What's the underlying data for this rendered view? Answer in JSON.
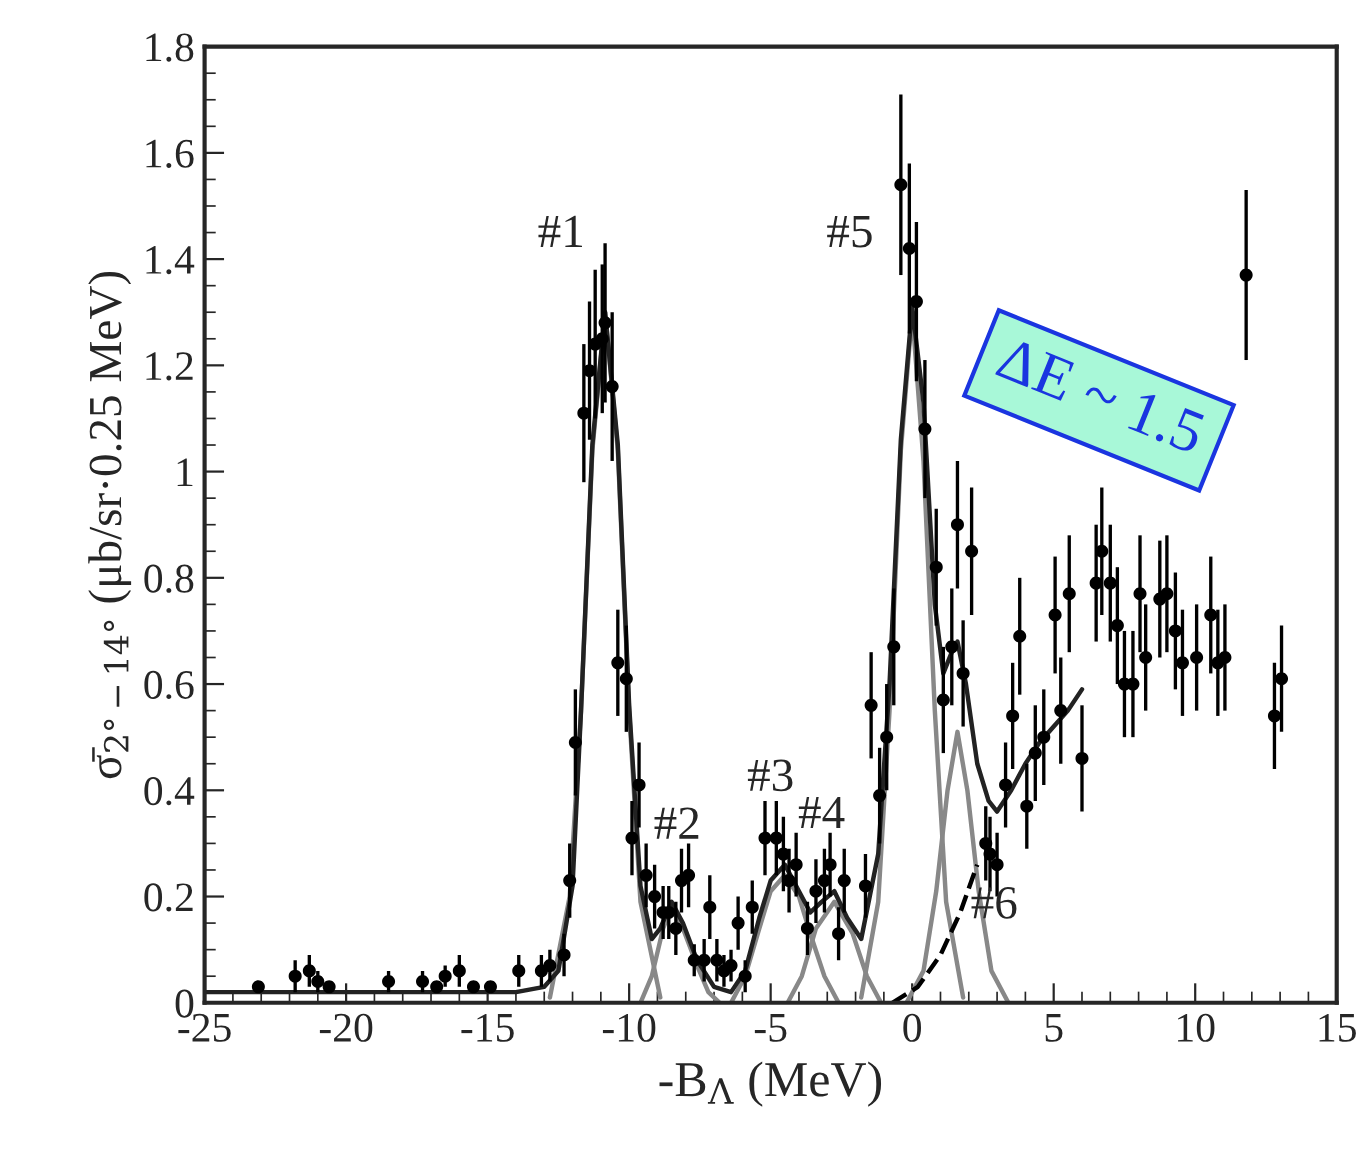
{
  "chart_data": {
    "type": "scatter",
    "xlabel": "-B$_{Λ}$ (MeV)",
    "ylabel": "σ̄$_{2°−14°}$ (μb/sr·0.25 MeV)",
    "xlim": [
      -25,
      15
    ],
    "xticks": [
      -25,
      -20,
      -15,
      -10,
      -5,
      0,
      5,
      10,
      15
    ],
    "ylim": [
      0,
      1.8
    ],
    "yticks": [
      0,
      0.2,
      0.4,
      0.6,
      0.8,
      1,
      1.2,
      1.4,
      1.6,
      1.8
    ],
    "grid": false,
    "legend": false,
    "series": [
      {
        "type": "line",
        "color": "#888888",
        "line_style": "solid",
        "x": [
          -12.8,
          -12.1,
          -11.7,
          -11.3,
          -10.85,
          -10.4,
          -10.0,
          -9.6,
          -8.9
        ],
        "values": [
          0.01,
          0.2,
          0.55,
          1.04,
          1.3,
          1.04,
          0.55,
          0.19,
          0.01
        ]
      },
      {
        "type": "line",
        "color": "#888888",
        "line_style": "solid",
        "x": [
          -9.6,
          -9.2,
          -8.8,
          -8.5,
          -8.1,
          -7.6,
          -7.2,
          -6.8
        ],
        "values": [
          0.0,
          0.05,
          0.14,
          0.18,
          0.14,
          0.07,
          0.02,
          0.0
        ]
      },
      {
        "type": "line",
        "color": "#888888",
        "line_style": "solid",
        "x": [
          -6.4,
          -5.9,
          -5.4,
          -5.0,
          -4.5,
          -4.0,
          -3.6,
          -3.1,
          -2.6
        ],
        "values": [
          0.0,
          0.05,
          0.14,
          0.21,
          0.24,
          0.2,
          0.13,
          0.05,
          0.0
        ]
      },
      {
        "type": "line",
        "color": "#888888",
        "line_style": "solid",
        "x": [
          -4.4,
          -3.9,
          -3.4,
          -2.75,
          -2.1,
          -1.6,
          -1.1
        ],
        "values": [
          0.0,
          0.05,
          0.14,
          0.19,
          0.13,
          0.05,
          0.0
        ]
      },
      {
        "type": "line",
        "color": "#888888",
        "line_style": "solid",
        "x": [
          -1.8,
          -1.2,
          -0.8,
          -0.4,
          0,
          0.4,
          0.8,
          1.2,
          1.8
        ],
        "values": [
          0.01,
          0.19,
          0.55,
          1.04,
          1.3,
          1.02,
          0.55,
          0.19,
          0.01
        ]
      },
      {
        "type": "line",
        "color": "#888888",
        "line_style": "solid",
        "x": [
          -0.2,
          0.4,
          0.85,
          1.25,
          1.6,
          1.95,
          2.35,
          2.8,
          3.4
        ],
        "values": [
          0.0,
          0.06,
          0.21,
          0.4,
          0.51,
          0.4,
          0.21,
          0.06,
          0.0
        ]
      },
      {
        "type": "line",
        "color": "#000000",
        "line_style": "dashed",
        "x": [
          -0.7,
          0.2,
          1.0,
          1.7,
          2.3
        ],
        "values": [
          0.0,
          0.03,
          0.09,
          0.17,
          0.26
        ]
      },
      {
        "type": "line",
        "color": "#222222",
        "line_style": "solid",
        "x": [
          -25,
          -14,
          -13,
          -12.5,
          -12,
          -11.7,
          -11.3,
          -10.85,
          -10.4,
          -10,
          -9.6,
          -9.2,
          -8.9,
          -8.5,
          -8.1,
          -7.6,
          -7.0,
          -6.4,
          -5.9,
          -5.4,
          -5.0,
          -4.5,
          -4.0,
          -3.6,
          -3.2,
          -2.75,
          -2.3,
          -1.8,
          -1.2,
          -0.8,
          -0.4,
          0,
          0.4,
          0.8,
          1.1,
          1.4,
          1.6,
          1.9,
          2.3,
          2.7,
          3.0,
          3.5,
          4.0,
          4.5,
          5.0,
          5.5,
          6.0
        ],
        "values": [
          0.02,
          0.02,
          0.03,
          0.06,
          0.22,
          0.55,
          1.05,
          1.3,
          1.05,
          0.56,
          0.22,
          0.12,
          0.14,
          0.19,
          0.15,
          0.08,
          0.03,
          0.02,
          0.06,
          0.16,
          0.23,
          0.26,
          0.21,
          0.17,
          0.19,
          0.21,
          0.16,
          0.12,
          0.28,
          0.6,
          1.06,
          1.31,
          1.13,
          0.75,
          0.62,
          0.66,
          0.68,
          0.6,
          0.45,
          0.38,
          0.36,
          0.4,
          0.45,
          0.49,
          0.52,
          0.55,
          0.59
        ]
      },
      {
        "type": "scatter",
        "color": "#000000",
        "marker": "circle",
        "x": [
          -23.1,
          -21.8,
          -21.3,
          -21.0,
          -20.6,
          -18.5,
          -17.3,
          -16.8,
          -16.5,
          -16.0,
          -15.5,
          -14.9,
          -13.9,
          -13.1,
          -12.8,
          -12.3,
          -12.1,
          -11.9,
          -11.6,
          -11.4,
          -11.2,
          -10.95,
          -10.85,
          -10.6,
          -10.4,
          -10.1,
          -9.9,
          -9.65,
          -9.4,
          -9.1,
          -8.8,
          -8.6,
          -8.35,
          -8.15,
          -7.9,
          -7.7,
          -7.35,
          -7.15,
          -6.9,
          -6.65,
          -6.4,
          -6.15,
          -5.9,
          -5.65,
          -5.2,
          -4.8,
          -4.55,
          -4.35,
          -4.1,
          -3.7,
          -3.4,
          -3.1,
          -2.9,
          -2.6,
          -2.4,
          -1.65,
          -1.45,
          -1.15,
          -0.9,
          -0.65,
          -0.4,
          -0.1,
          0.15,
          0.45,
          0.85,
          1.1,
          1.4,
          1.6,
          1.8,
          2.1,
          2.6,
          2.75,
          3.0,
          3.3,
          3.55,
          3.8,
          4.05,
          4.35,
          4.65,
          5.05,
          5.25,
          5.55,
          6.0,
          6.5,
          6.7,
          7.0,
          7.25,
          7.5,
          7.8,
          8.05,
          8.25,
          8.75,
          9.0,
          9.3,
          9.55,
          10.05,
          10.55,
          10.8,
          11.05,
          11.8,
          12.8,
          13.05
        ],
        "values": [
          0.03,
          0.05,
          0.06,
          0.04,
          0.03,
          0.04,
          0.04,
          0.03,
          0.05,
          0.06,
          0.03,
          0.03,
          0.06,
          0.06,
          0.07,
          0.09,
          0.23,
          0.49,
          1.11,
          1.19,
          1.24,
          1.25,
          1.28,
          1.16,
          0.64,
          0.61,
          0.31,
          0.41,
          0.24,
          0.2,
          0.17,
          0.17,
          0.14,
          0.23,
          0.24,
          0.08,
          0.08,
          0.18,
          0.08,
          0.06,
          0.07,
          0.15,
          0.05,
          0.18,
          0.31,
          0.31,
          0.28,
          0.23,
          0.26,
          0.14,
          0.21,
          0.23,
          0.26,
          0.13,
          0.23,
          0.22,
          0.56,
          0.39,
          0.5,
          0.67,
          1.54,
          1.42,
          1.32,
          1.08,
          0.82,
          0.57,
          0.67,
          0.9,
          0.62,
          0.85,
          0.3,
          0.28,
          0.26,
          0.41,
          0.54,
          0.69,
          0.37,
          0.47,
          0.5,
          0.73,
          0.55,
          0.77,
          0.46,
          0.79,
          0.85,
          0.79,
          0.71,
          0.6,
          0.6,
          0.77,
          0.65,
          0.76,
          0.77,
          0.7,
          0.64,
          0.65,
          0.73,
          0.64,
          0.65,
          1.37,
          0.54,
          0.61
        ],
        "errors": [
          0.01,
          0.03,
          0.03,
          0.02,
          0.01,
          0.02,
          0.02,
          0.01,
          0.02,
          0.03,
          0.01,
          0.01,
          0.03,
          0.03,
          0.03,
          0.04,
          0.07,
          0.1,
          0.13,
          0.13,
          0.14,
          0.14,
          0.15,
          0.14,
          0.1,
          0.1,
          0.07,
          0.08,
          0.06,
          0.06,
          0.05,
          0.05,
          0.05,
          0.06,
          0.06,
          0.03,
          0.04,
          0.06,
          0.04,
          0.03,
          0.03,
          0.05,
          0.03,
          0.05,
          0.07,
          0.07,
          0.07,
          0.06,
          0.06,
          0.05,
          0.06,
          0.06,
          0.06,
          0.05,
          0.06,
          0.06,
          0.1,
          0.09,
          0.1,
          0.11,
          0.17,
          0.16,
          0.15,
          0.13,
          0.11,
          0.1,
          0.11,
          0.12,
          0.1,
          0.12,
          0.07,
          0.07,
          0.06,
          0.08,
          0.1,
          0.11,
          0.08,
          0.09,
          0.09,
          0.11,
          0.1,
          0.11,
          0.1,
          0.11,
          0.12,
          0.11,
          0.11,
          0.1,
          0.1,
          0.11,
          0.1,
          0.11,
          0.11,
          0.11,
          0.1,
          0.1,
          0.11,
          0.1,
          0.1,
          0.16,
          0.1,
          0.1
        ]
      }
    ],
    "annotations": [
      "#1",
      {
        "text": "#2",
        "x": -8.3,
        "y": 0.29
      },
      {
        "text": "#3",
        "x": -5.0,
        "y": 0.38
      },
      {
        "text": "#4",
        "x": -3.2,
        "y": 0.31
      },
      "#5",
      {
        "text": "#6",
        "x": 2.9,
        "y": 0.14
      },
      "ΔE ~ 1.5"
    ]
  }
}
